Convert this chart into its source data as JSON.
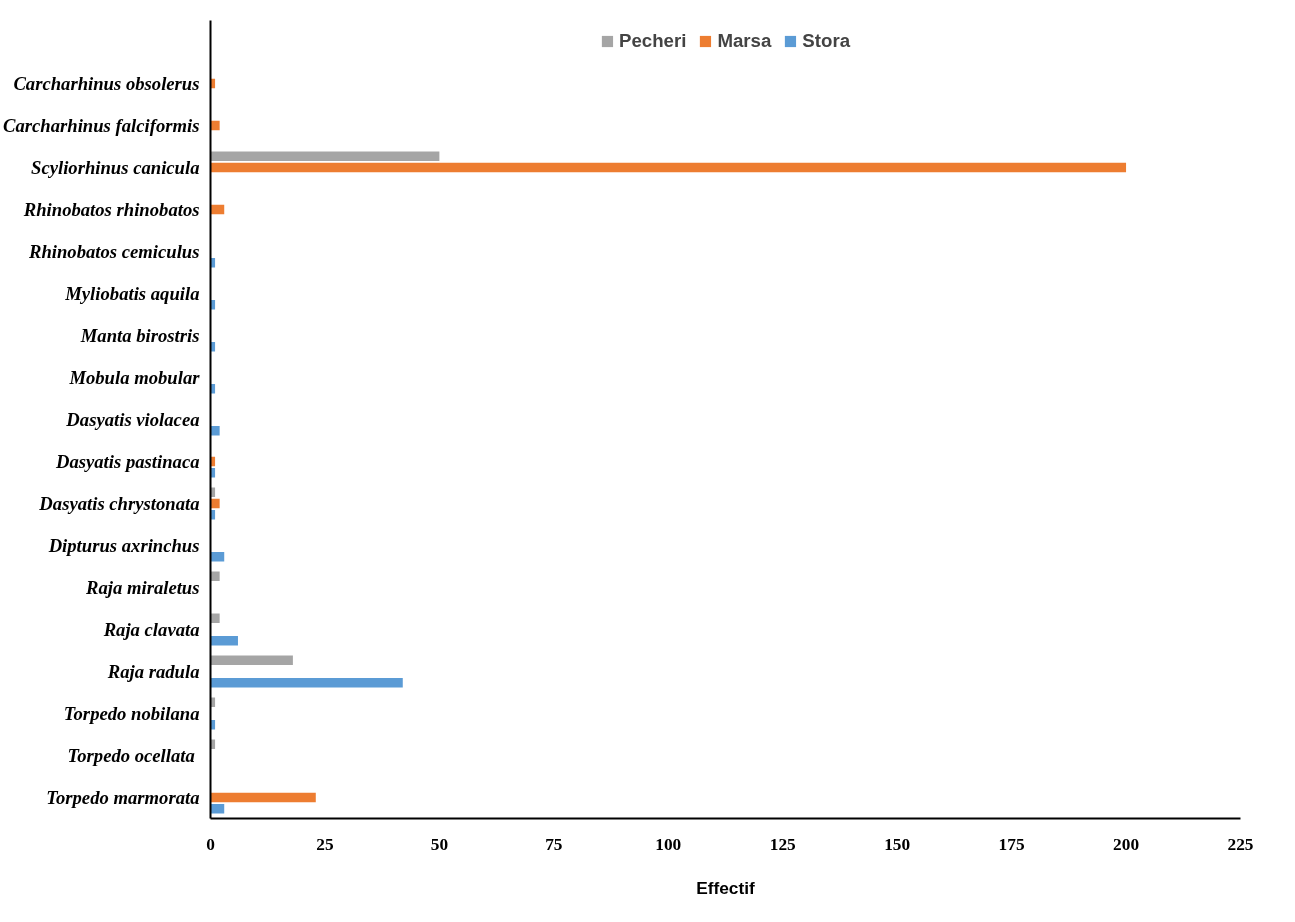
{
  "chart_data": {
    "type": "bar",
    "orientation": "horizontal",
    "xlabel": "Effectif",
    "categories": [
      "Carcharhinus obsolerus",
      "Carcharhinus falciformis",
      "Scyliorhinus canicula",
      "Rhinobatos rhinobatos",
      "Rhinobatos cemiculus",
      "Myliobatis aquila",
      "Manta birostris",
      "Mobula mobular",
      "Dasyatis violacea",
      "Dasyatis pastinaca",
      "Dasyatis chrystonata",
      "Dipturus axrinchus",
      "Raja miraletus",
      "Raja clavata",
      "Raja radula",
      "Torpedo nobilana",
      "Torpedo ocellata ",
      "Torpedo marmorata"
    ],
    "series": [
      {
        "name": "Pecheri",
        "color": "#a5a5a5",
        "values": [
          null,
          null,
          50,
          null,
          null,
          null,
          null,
          null,
          null,
          null,
          1,
          null,
          2,
          2,
          18,
          1,
          1,
          null
        ]
      },
      {
        "name": "Marsa",
        "color": "#ed7d31",
        "values": [
          1,
          2,
          200,
          3,
          null,
          null,
          null,
          null,
          null,
          1,
          2,
          null,
          null,
          null,
          null,
          null,
          null,
          23
        ]
      },
      {
        "name": "Stora",
        "color": "#5b9bd5",
        "values": [
          null,
          null,
          null,
          null,
          1,
          1,
          1,
          1,
          2,
          1,
          1,
          3,
          null,
          6,
          42,
          1,
          null,
          3
        ]
      }
    ],
    "xlim": [
      0,
      225
    ],
    "xticks": [
      0,
      25,
      50,
      75,
      100,
      125,
      150,
      175,
      200,
      225
    ],
    "grid": false,
    "legend": "top"
  }
}
